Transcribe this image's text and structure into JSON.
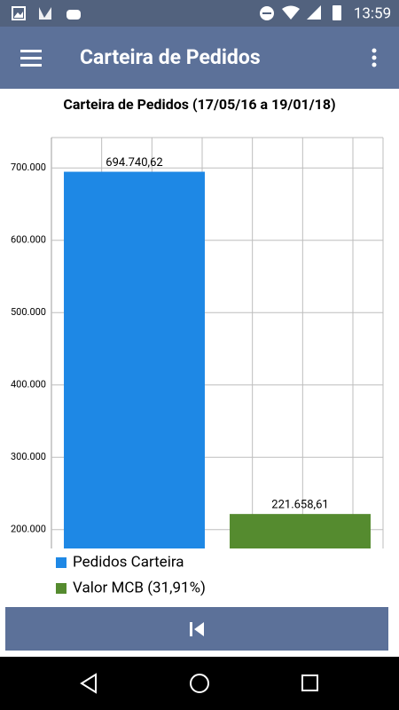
{
  "status_bar": {
    "time": "13:59"
  },
  "app_bar": {
    "title": "Carteira de Pedidos"
  },
  "chart_data": {
    "type": "bar",
    "title": "Carteira de Pedidos (17/05/16 a 19/01/18)",
    "categories": [
      null
    ],
    "series": [
      {
        "name": "Pedidos Carteira",
        "color": "#1e88e5",
        "values": [
          694740.62
        ],
        "value_labels": [
          "694.740,62"
        ]
      },
      {
        "name": "Valor MCB (31,91%)",
        "color": "#558b2f",
        "values": [
          221658.61
        ],
        "value_labels": [
          "221.658,61"
        ]
      }
    ],
    "ylim": [
      174000,
      742000
    ],
    "yticks": [
      {
        "value": 200000,
        "label": "200.000"
      },
      {
        "value": 300000,
        "label": "300.000"
      },
      {
        "value": 400000,
        "label": "400.000"
      },
      {
        "value": 500000,
        "label": "500.000"
      },
      {
        "value": 600000,
        "label": "600.000"
      },
      {
        "value": 700000,
        "label": "700.000"
      }
    ],
    "grid": true
  }
}
